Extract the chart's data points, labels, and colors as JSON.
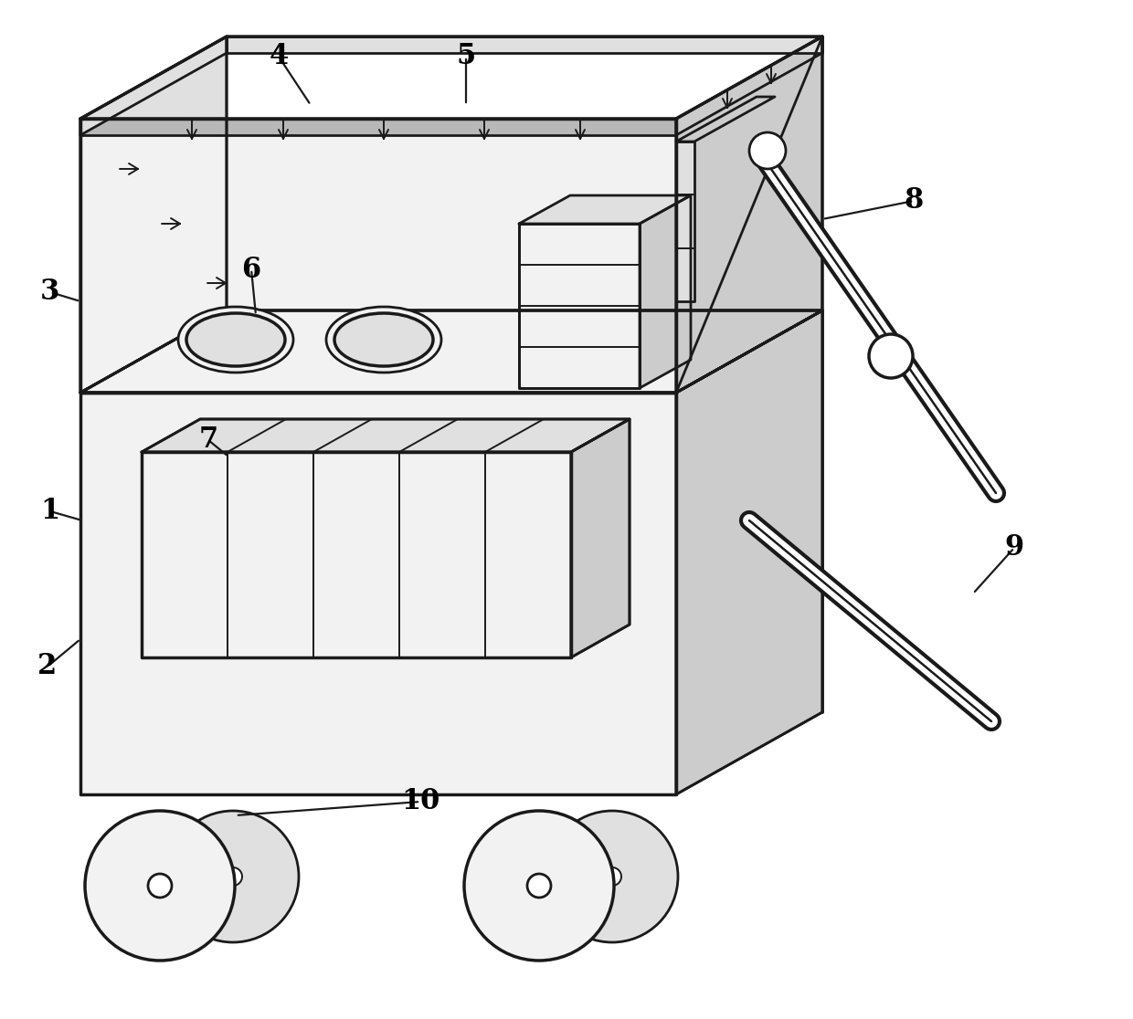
{
  "bg_color": "#ffffff",
  "line_color": "#1a1a1a",
  "lw_main": 2.0,
  "lw_thick": 2.5,
  "lw_thin": 1.4,
  "label_fontsize": 22,
  "gray_light": "#f2f2f2",
  "gray_mid": "#e0e0e0",
  "gray_dark": "#cccccc",
  "gray_darker": "#b8b8b8"
}
